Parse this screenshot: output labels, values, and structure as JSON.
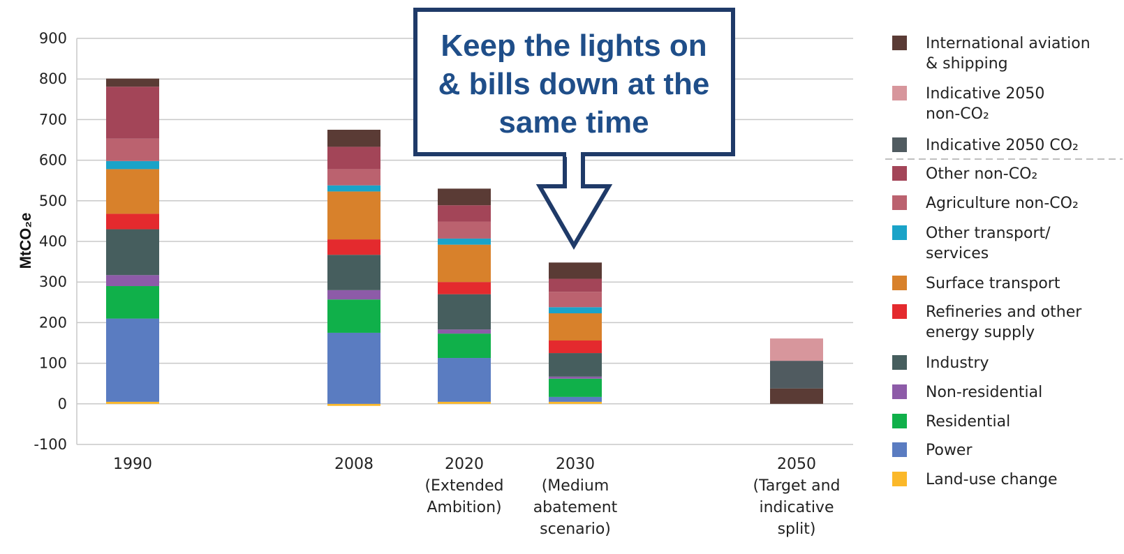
{
  "chart_data": {
    "type": "bar",
    "stacked": true,
    "ylabel": "MtCO₂e",
    "ylim": [
      -100,
      900
    ],
    "yticks": [
      -100,
      0,
      100,
      200,
      300,
      400,
      500,
      600,
      700,
      800,
      900
    ],
    "grid": true,
    "legend_position": "right",
    "categories": [
      [
        "1990"
      ],
      [
        "2008"
      ],
      [
        "2020",
        "(Extended",
        "Ambition)"
      ],
      [
        "2030",
        "(Medium",
        "abatement",
        "scenario)"
      ],
      [
        "2050",
        "(Target and",
        "indicative",
        "split)"
      ]
    ],
    "series": [
      {
        "name": "Land-use change",
        "color": "#fbb829",
        "values": [
          5,
          -5,
          5,
          5,
          0
        ]
      },
      {
        "name": "Power",
        "color": "#5a7cc1",
        "values": [
          205,
          175,
          108,
          12,
          0
        ]
      },
      {
        "name": "Residential",
        "color": "#10b04a",
        "values": [
          80,
          82,
          60,
          45,
          0
        ]
      },
      {
        "name": "Non-residential",
        "color": "#8d5ba8",
        "values": [
          27,
          23,
          10,
          5,
          0
        ]
      },
      {
        "name": "Industry",
        "color": "#465e5e",
        "values": [
          113,
          87,
          87,
          58,
          0
        ]
      },
      {
        "name": "Refineries and other energy supply",
        "color": "#e42a2e",
        "values": [
          38,
          38,
          30,
          31,
          0
        ]
      },
      {
        "name": "Surface transport",
        "color": "#d8812b",
        "values": [
          110,
          118,
          92,
          67,
          0
        ]
      },
      {
        "name": "Other transport/ services",
        "color": "#1aa3c8",
        "values": [
          20,
          15,
          15,
          15,
          0
        ]
      },
      {
        "name": "Agriculture non-CO₂",
        "color": "#bb626f",
        "values": [
          55,
          40,
          42,
          38,
          0
        ]
      },
      {
        "name": "Other non-CO₂",
        "color": "#a34558",
        "values": [
          128,
          55,
          40,
          32,
          0
        ]
      },
      {
        "name": "International aviation & shipping",
        "color": "#5a3b35",
        "values": [
          20,
          42,
          41,
          40,
          38
        ]
      },
      {
        "name": "Indicative 2050 CO₂",
        "color": "#505b60",
        "values": [
          0,
          0,
          0,
          0,
          68
        ]
      },
      {
        "name": "Indicative 2050 non-CO₂",
        "color": "#d7969c",
        "values": [
          0,
          0,
          0,
          0,
          55
        ]
      }
    ],
    "legend": [
      {
        "lines": [
          "International aviation",
          "& shipping"
        ],
        "color": "#5a3b35"
      },
      {
        "lines": [
          "Indicative 2050",
          "non-CO₂"
        ],
        "color": "#d7969c"
      },
      {
        "lines": [
          "Indicative 2050 CO₂"
        ],
        "color": "#505b60"
      },
      {
        "lines": [
          "Other non-CO₂"
        ],
        "color": "#a34558"
      },
      {
        "lines": [
          "Agriculture non-CO₂"
        ],
        "color": "#bb626f"
      },
      {
        "lines": [
          "Other transport/",
          "services"
        ],
        "color": "#1aa3c8"
      },
      {
        "lines": [
          "Surface transport"
        ],
        "color": "#d8812b"
      },
      {
        "lines": [
          "Refineries and other",
          "energy supply"
        ],
        "color": "#e42a2e"
      },
      {
        "lines": [
          "Industry"
        ],
        "color": "#465e5e"
      },
      {
        "lines": [
          "Non-residential"
        ],
        "color": "#8d5ba8"
      },
      {
        "lines": [
          "Residential"
        ],
        "color": "#10b04a"
      },
      {
        "lines": [
          "Power"
        ],
        "color": "#5a7cc1"
      },
      {
        "lines": [
          "Land-use change"
        ],
        "color": "#fbb829"
      }
    ],
    "callout": {
      "lines": [
        "Keep the lights on",
        "& bills down at the",
        "same time"
      ],
      "border_color": "#1f3a68",
      "text_color": "#1f4e89"
    }
  }
}
